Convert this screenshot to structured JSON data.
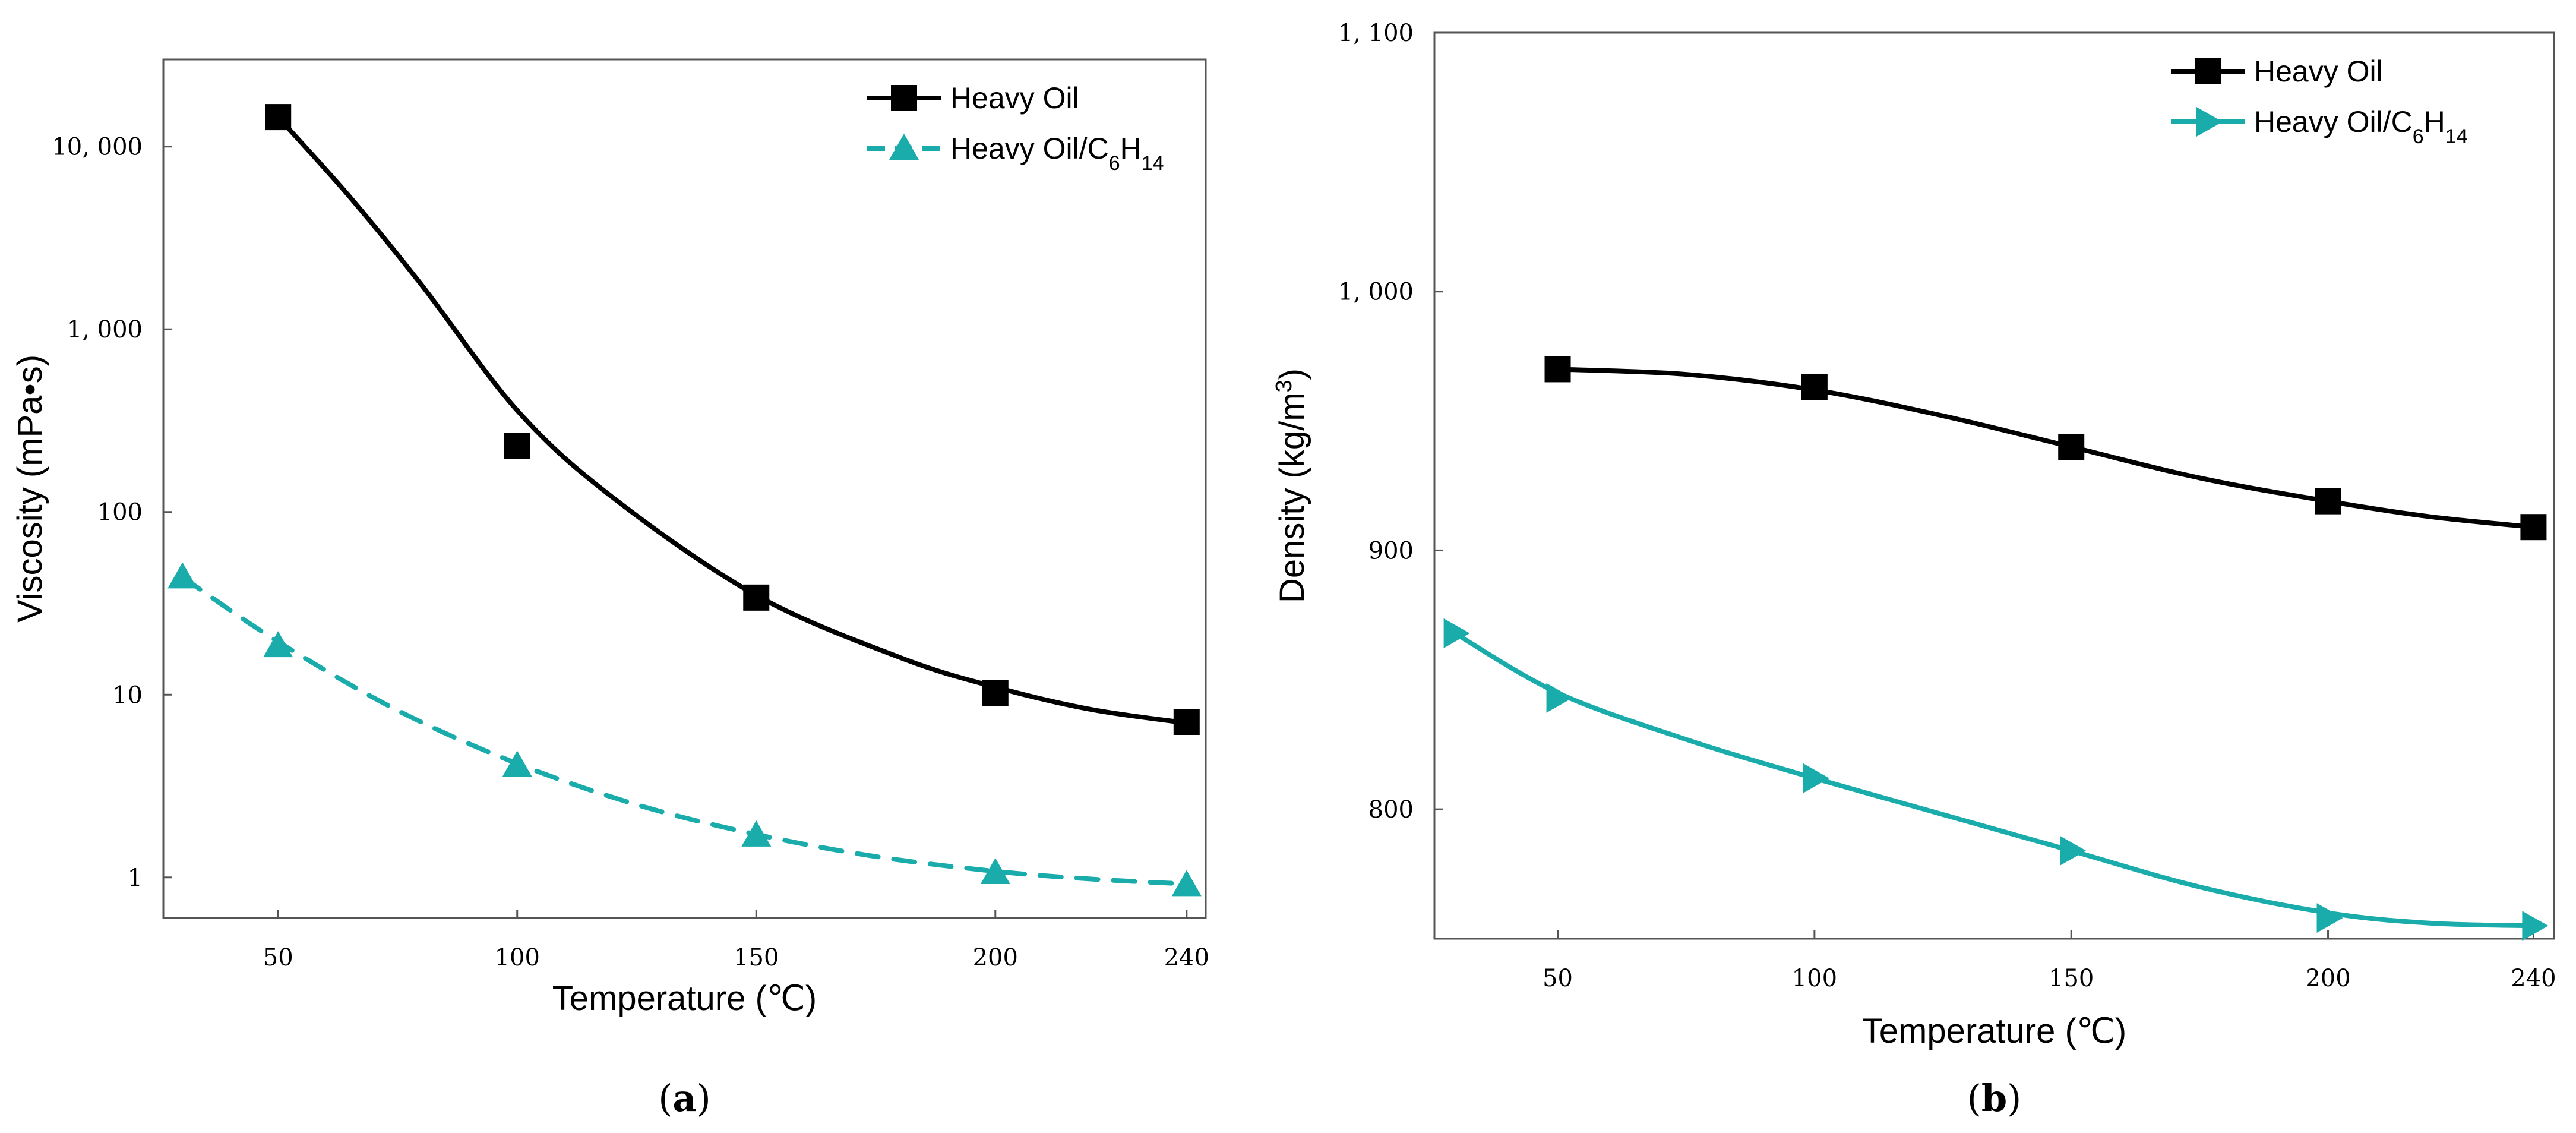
{
  "chart_data": [
    {
      "type": "line",
      "panel_label": "(a)",
      "panel_letter": "a",
      "xlabel": "Temperature (℃)",
      "ylabel": "Viscosity (mPa•s)",
      "yscale": "log",
      "xlim": [
        26,
        244
      ],
      "ylim": [
        0.6,
        30000
      ],
      "x_ticks": [
        50,
        100,
        150,
        200,
        240
      ],
      "x_tick_labels": [
        "50",
        "100",
        "150",
        "200",
        "240"
      ],
      "y_ticks": [
        1,
        10,
        100,
        1000,
        10000
      ],
      "y_tick_labels": [
        "1",
        "10",
        "100",
        "1, 000",
        "10, 000"
      ],
      "legend_position": "top-right",
      "series": [
        {
          "name": "Heavy Oil",
          "legend": {
            "main": "Heavy Oil",
            "sub1": "",
            "mid": "",
            "sub2": ""
          },
          "color": "#000000",
          "marker": "square",
          "dash": "solid",
          "x": [
            50,
            100,
            150,
            200,
            240
          ],
          "values": [
            14500,
            230,
            34,
            10.2,
            7.1
          ],
          "fit_x": [
            50,
            65,
            80,
            100,
            120,
            150,
            180,
            200,
            220,
            240
          ],
          "fit_y": [
            14500,
            5300,
            1750,
            360,
            120,
            35,
            16,
            11,
            8.3,
            7.0
          ]
        },
        {
          "name": "Heavy Oil/C6H14",
          "legend": {
            "main": "Heavy Oil/C",
            "sub1": "6",
            "mid": "H",
            "sub2": "14"
          },
          "color": "#1aabab",
          "marker": "triangle-up",
          "dash": "dashed",
          "x": [
            30,
            50,
            100,
            150,
            200,
            240
          ],
          "values": [
            44,
            18.5,
            4.1,
            1.7,
            1.06,
            0.91
          ],
          "fit_x": [
            30,
            50,
            75,
            100,
            125,
            150,
            175,
            200,
            220,
            240
          ],
          "fit_y": [
            44,
            19.5,
            8.2,
            4.2,
            2.5,
            1.72,
            1.3,
            1.08,
            0.98,
            0.92
          ]
        }
      ]
    },
    {
      "type": "line",
      "panel_label": "(b)",
      "panel_letter": "b",
      "xlabel": "Temperature (℃)",
      "ylabel": "Density (kg/m",
      "ylabel_sup": "3",
      "ylabel_close": ")",
      "yscale": "linear",
      "xlim": [
        26,
        244
      ],
      "ylim": [
        750,
        1100
      ],
      "x_ticks": [
        50,
        100,
        150,
        200,
        240
      ],
      "x_tick_labels": [
        "50",
        "100",
        "150",
        "200",
        "240"
      ],
      "y_ticks": [
        800,
        900,
        1000,
        1100
      ],
      "y_tick_labels": [
        "800",
        "900",
        "1, 000",
        "1, 100"
      ],
      "legend_position": "top-right",
      "series": [
        {
          "name": "Heavy Oil",
          "legend": {
            "main": "Heavy Oil",
            "sub1": "",
            "mid": "",
            "sub2": ""
          },
          "color": "#000000",
          "marker": "square",
          "dash": "solid",
          "x": [
            50,
            100,
            150,
            200,
            240
          ],
          "values": [
            970,
            963,
            940,
            919,
            909
          ],
          "fit_x": [
            50,
            75,
            100,
            125,
            150,
            175,
            200,
            220,
            240
          ],
          "fit_y": [
            970,
            968,
            962,
            952,
            940,
            928,
            919,
            913,
            909
          ]
        },
        {
          "name": "Heavy Oil/C6H14",
          "legend": {
            "main": "Heavy Oil/C",
            "sub1": "6",
            "mid": "H",
            "sub2": "14"
          },
          "color": "#1aabab",
          "marker": "triangle-right",
          "dash": "solid",
          "x": [
            30,
            50,
            100,
            150,
            200,
            240
          ],
          "values": [
            868,
            843,
            812,
            784,
            758,
            755
          ],
          "fit_x": [
            30,
            50,
            75,
            100,
            125,
            150,
            175,
            200,
            220,
            240
          ],
          "fit_y": [
            868,
            845,
            827,
            812,
            798,
            784,
            770,
            760,
            756,
            755
          ]
        }
      ]
    }
  ]
}
